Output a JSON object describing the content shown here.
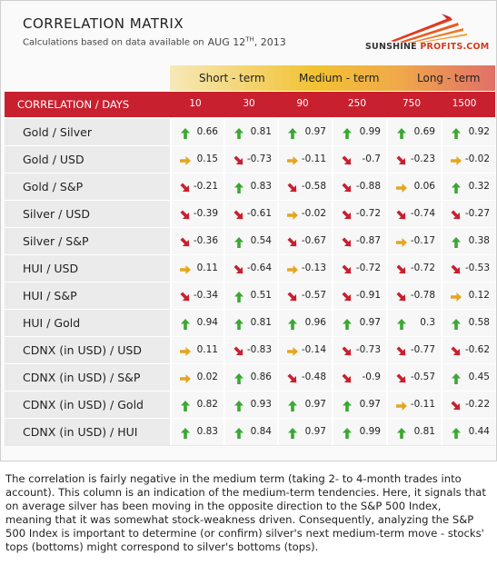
{
  "title": "CORRELATION MATRIX",
  "subtitle": "Calculations based on data available on",
  "date_prefix": "AUG 12",
  "date_sup": "TH",
  "date_suffix": ", 2013",
  "logo": {
    "brand": "SUNSHINE",
    "suffix": "PROFITS.COM"
  },
  "horizons": [
    "Short - term",
    "Medium - term",
    "Long - term"
  ],
  "colors": {
    "header": "#c8202f",
    "up": "#3aa832",
    "down": "#c8202f",
    "flat": "#e6a51f"
  },
  "chart_data": {
    "type": "table",
    "row_header": "CORRELATION / DAYS",
    "columns": [
      "10",
      "30",
      "90",
      "250",
      "750",
      "1500"
    ],
    "rows": [
      {
        "name": "Gold / Silver",
        "values": [
          0.66,
          0.81,
          0.97,
          0.99,
          0.69,
          0.92
        ],
        "labels": [
          "0.66",
          "0.81",
          "0.97",
          "0.99",
          "0.69",
          "0.92"
        ],
        "trend": [
          "up",
          "up",
          "up",
          "up",
          "up",
          "up"
        ]
      },
      {
        "name": "Gold / USD",
        "values": [
          0.15,
          -0.73,
          -0.11,
          -0.7,
          -0.23,
          -0.02
        ],
        "labels": [
          "0.15",
          "-0.73",
          "-0.11",
          "-0.7",
          "-0.23",
          "-0.02"
        ],
        "trend": [
          "flat",
          "down",
          "flat",
          "down",
          "down",
          "flat"
        ]
      },
      {
        "name": "Gold / S&P",
        "values": [
          -0.21,
          0.83,
          -0.58,
          -0.88,
          0.06,
          0.32
        ],
        "labels": [
          "-0.21",
          "0.83",
          "-0.58",
          "-0.88",
          "0.06",
          "0.32"
        ],
        "trend": [
          "down",
          "up",
          "down",
          "down",
          "flat",
          "up"
        ]
      },
      {
        "name": "Silver / USD",
        "values": [
          -0.39,
          -0.61,
          -0.02,
          -0.72,
          -0.74,
          -0.27
        ],
        "labels": [
          "-0.39",
          "-0.61",
          "-0.02",
          "-0.72",
          "-0.74",
          "-0.27"
        ],
        "trend": [
          "down",
          "down",
          "flat",
          "down",
          "down",
          "down"
        ]
      },
      {
        "name": "Silver / S&P",
        "values": [
          -0.36,
          0.54,
          -0.67,
          -0.87,
          -0.17,
          0.38
        ],
        "labels": [
          "-0.36",
          "0.54",
          "-0.67",
          "-0.87",
          "-0.17",
          "0.38"
        ],
        "trend": [
          "down",
          "up",
          "down",
          "down",
          "flat",
          "up"
        ]
      },
      {
        "name": "HUI / USD",
        "values": [
          0.11,
          -0.64,
          -0.13,
          -0.72,
          -0.72,
          -0.53
        ],
        "labels": [
          "0.11",
          "-0.64",
          "-0.13",
          "-0.72",
          "-0.72",
          "-0.53"
        ],
        "trend": [
          "flat",
          "down",
          "flat",
          "down",
          "down",
          "down"
        ]
      },
      {
        "name": "HUI / S&P",
        "values": [
          -0.34,
          0.51,
          -0.57,
          -0.91,
          -0.78,
          0.12
        ],
        "labels": [
          "-0.34",
          "0.51",
          "-0.57",
          "-0.91",
          "-0.78",
          "0.12"
        ],
        "trend": [
          "down",
          "up",
          "down",
          "down",
          "down",
          "flat"
        ]
      },
      {
        "name": "HUI / Gold",
        "values": [
          0.94,
          0.81,
          0.96,
          0.97,
          0.3,
          0.58
        ],
        "labels": [
          "0.94",
          "0.81",
          "0.96",
          "0.97",
          "0.3",
          "0.58"
        ],
        "trend": [
          "up",
          "up",
          "up",
          "up",
          "up",
          "up"
        ]
      },
      {
        "name": "CDNX (in USD) / USD",
        "values": [
          0.11,
          -0.83,
          -0.14,
          -0.73,
          -0.77,
          -0.62
        ],
        "labels": [
          "0.11",
          "-0.83",
          "-0.14",
          "-0.73",
          "-0.77",
          "-0.62"
        ],
        "trend": [
          "flat",
          "down",
          "flat",
          "down",
          "down",
          "down"
        ]
      },
      {
        "name": "CDNX (in USD) / S&P",
        "values": [
          0.02,
          0.86,
          -0.48,
          -0.9,
          -0.57,
          0.45
        ],
        "labels": [
          "0.02",
          "0.86",
          "-0.48",
          "-0.9",
          "-0.57",
          "0.45"
        ],
        "trend": [
          "flat",
          "up",
          "down",
          "down",
          "down",
          "up"
        ]
      },
      {
        "name": "CDNX (in USD) / Gold",
        "values": [
          0.82,
          0.93,
          0.97,
          0.97,
          -0.11,
          -0.22
        ],
        "labels": [
          "0.82",
          "0.93",
          "0.97",
          "0.97",
          "-0.11",
          "-0.22"
        ],
        "trend": [
          "up",
          "up",
          "up",
          "up",
          "flat",
          "down"
        ]
      },
      {
        "name": "CDNX (in USD) / HUI",
        "values": [
          0.83,
          0.84,
          0.97,
          0.99,
          0.81,
          0.44
        ],
        "labels": [
          "0.83",
          "0.84",
          "0.97",
          "0.99",
          "0.81",
          "0.44"
        ],
        "trend": [
          "up",
          "up",
          "up",
          "up",
          "up",
          "up"
        ]
      }
    ]
  },
  "note": "The correlation is fairly negative in the medium term (taking 2- to 4-month trades into account). This column is an indication of the medium-term tendencies. Here, it signals that on average silver has been moving in the opposite direction to the S&P 500 Index, meaning that it was somewhat stock-weakness driven. Consequently, analyzing the S&P 500 Index is important to determine (or confirm) silver's next medium-term move - stocks' tops (bottoms) might correspond to silver's bottoms (tops)."
}
